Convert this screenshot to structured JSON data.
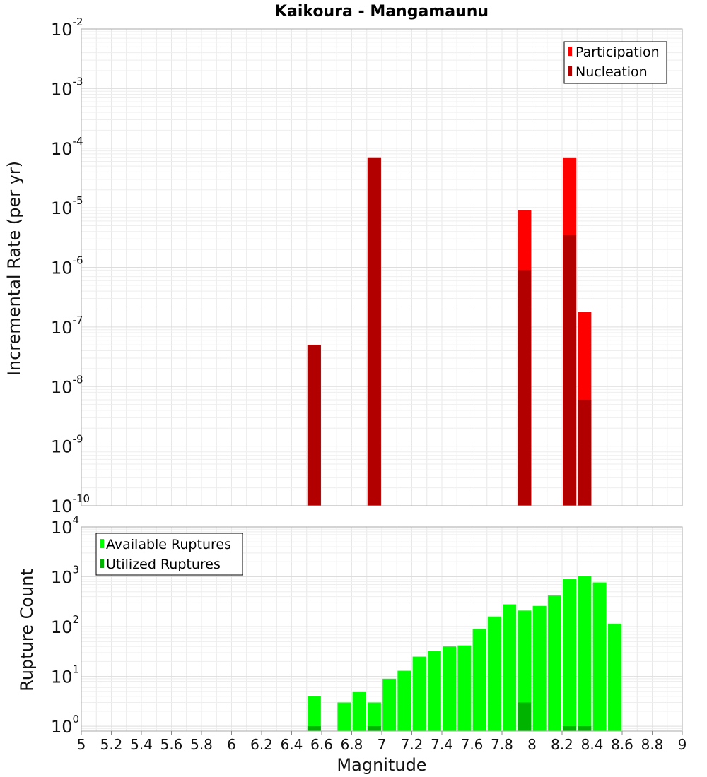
{
  "chart_data": [
    {
      "type": "bar",
      "title": "Kaikoura - Mangamaunu",
      "xlabel": "",
      "ylabel": "Incremental Rate (per yr)",
      "xlim": [
        5,
        9
      ],
      "ylim": [
        1e-10,
        0.01
      ],
      "yscale": "log",
      "ytick_labels": [
        "10^-10",
        "10^-9",
        "10^-8",
        "10^-7",
        "10^-6",
        "10^-5",
        "10^-4",
        "10^-3",
        "10^-2"
      ],
      "grid": true,
      "legend": "top-right",
      "x": [
        6.55,
        6.95,
        7.95,
        8.25,
        8.35
      ],
      "series": [
        {
          "name": "Participation",
          "color": "#ff0000",
          "values": [
            5e-08,
            7e-05,
            9e-06,
            7e-05,
            1.8e-07
          ]
        },
        {
          "name": "Nucleation",
          "color": "#b20000",
          "values": [
            5e-08,
            7e-05,
            9e-07,
            3.5e-06,
            6e-09
          ]
        }
      ]
    },
    {
      "type": "bar",
      "title": "",
      "xlabel": "Magnitude",
      "ylabel": "Rupture Count",
      "xlim": [
        5,
        9
      ],
      "ylim": [
        0.8,
        10000
      ],
      "yscale": "log",
      "ytick_labels": [
        "10^0",
        "10^1",
        "10^2",
        "10^3",
        "10^4"
      ],
      "xtick_labels": [
        "5",
        "5.2",
        "5.4",
        "5.6",
        "5.8",
        "6",
        "6.2",
        "6.4",
        "6.6",
        "6.8",
        "7",
        "7.2",
        "7.4",
        "7.6",
        "7.8",
        "8",
        "8.2",
        "8.4",
        "8.6",
        "8.8",
        "9"
      ],
      "grid": true,
      "legend": "top-left",
      "x": [
        6.55,
        6.65,
        6.75,
        6.85,
        6.95,
        7.05,
        7.15,
        7.25,
        7.35,
        7.45,
        7.55,
        7.65,
        7.75,
        7.85,
        7.95,
        8.05,
        8.15,
        8.25,
        8.35,
        8.45,
        8.55
      ],
      "series": [
        {
          "name": "Available Ruptures",
          "color": "#00ff00",
          "values": [
            4,
            0,
            3,
            5,
            3,
            9,
            13,
            25,
            32,
            40,
            42,
            90,
            160,
            280,
            210,
            260,
            420,
            900,
            1050,
            770,
            115
          ]
        },
        {
          "name": "Utilized Ruptures",
          "color": "#00b300",
          "values": [
            1,
            0,
            0,
            0,
            1,
            0,
            0,
            0,
            0,
            0,
            0,
            0,
            0,
            0,
            3,
            0,
            0,
            1,
            1,
            0,
            0
          ]
        }
      ]
    }
  ]
}
